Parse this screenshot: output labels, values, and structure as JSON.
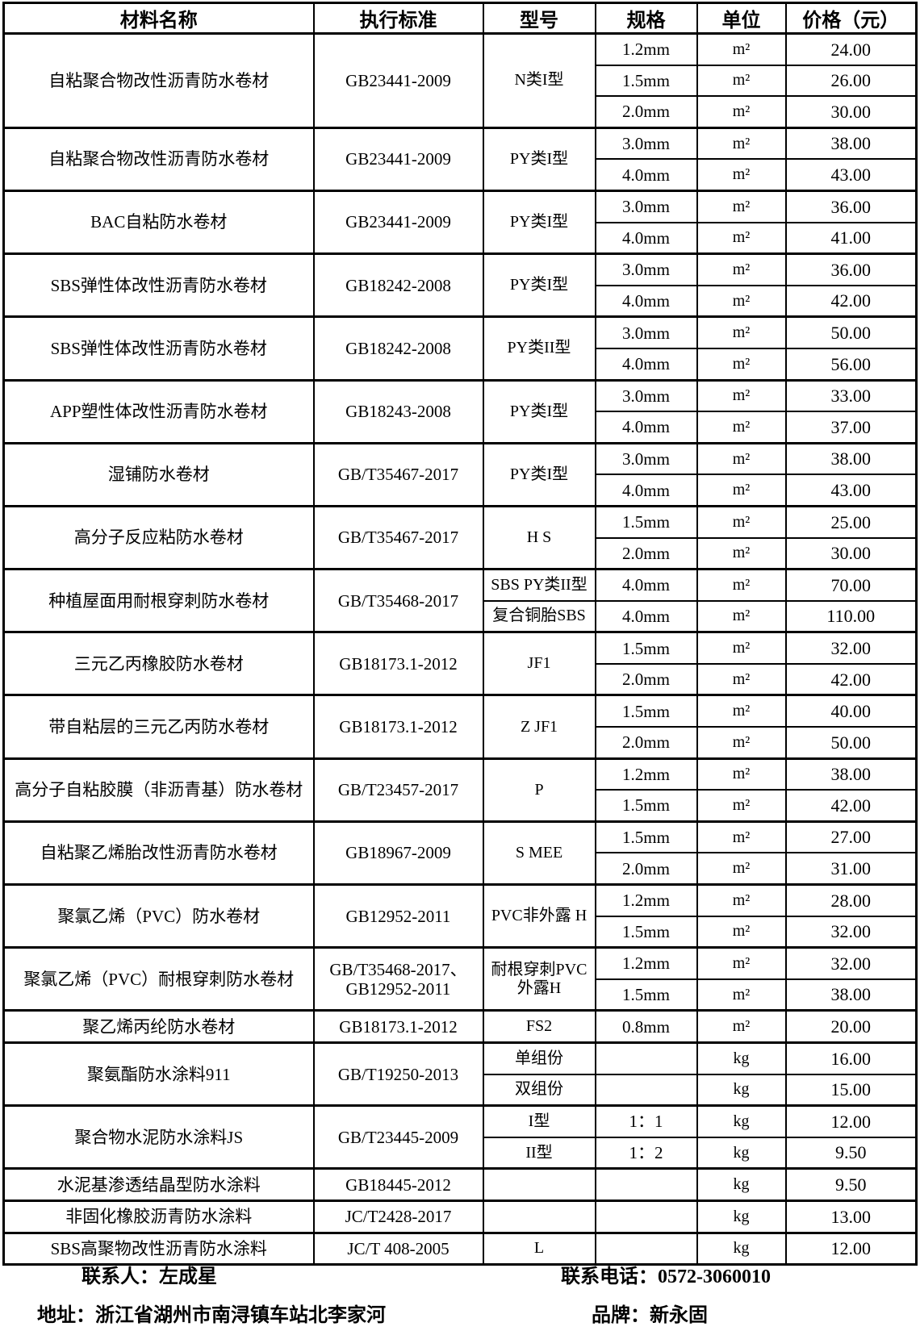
{
  "colors": {
    "background": "#ffffff",
    "text": "#000000",
    "border": "#000000"
  },
  "table": {
    "headers": [
      "材料名称",
      "执行标准",
      "型号",
      "规格",
      "单位",
      "价格（元）"
    ],
    "groups": [
      {
        "name": "自粘聚合物改性沥青防水卷材",
        "standard": "GB23441-2009",
        "model": "N类I型",
        "rows": [
          {
            "spec": "1.2mm",
            "unit": "m²",
            "price": "24.00"
          },
          {
            "spec": "1.5mm",
            "unit": "m²",
            "price": "26.00"
          },
          {
            "spec": "2.0mm",
            "unit": "m²",
            "price": "30.00"
          }
        ]
      },
      {
        "name": "自粘聚合物改性沥青防水卷材",
        "standard": "GB23441-2009",
        "model": "PY类I型",
        "rows": [
          {
            "spec": "3.0mm",
            "unit": "m²",
            "price": "38.00"
          },
          {
            "spec": "4.0mm",
            "unit": "m²",
            "price": "43.00"
          }
        ]
      },
      {
        "name": "BAC自粘防水卷材",
        "standard": "GB23441-2009",
        "model": "PY类I型",
        "rows": [
          {
            "spec": "3.0mm",
            "unit": "m²",
            "price": "36.00"
          },
          {
            "spec": "4.0mm",
            "unit": "m²",
            "price": "41.00"
          }
        ]
      },
      {
        "name": "SBS弹性体改性沥青防水卷材",
        "standard": "GB18242-2008",
        "model": "PY类I型",
        "rows": [
          {
            "spec": "3.0mm",
            "unit": "m²",
            "price": "36.00"
          },
          {
            "spec": "4.0mm",
            "unit": "m²",
            "price": "42.00"
          }
        ]
      },
      {
        "name": "SBS弹性体改性沥青防水卷材",
        "standard": "GB18242-2008",
        "model": "PY类II型",
        "rows": [
          {
            "spec": "3.0mm",
            "unit": "m²",
            "price": "50.00"
          },
          {
            "spec": "4.0mm",
            "unit": "m²",
            "price": "56.00"
          }
        ]
      },
      {
        "name": "APP塑性体改性沥青防水卷材",
        "standard": "GB18243-2008",
        "model": "PY类I型",
        "rows": [
          {
            "spec": "3.0mm",
            "unit": "m²",
            "price": "33.00"
          },
          {
            "spec": "4.0mm",
            "unit": "m²",
            "price": "37.00"
          }
        ]
      },
      {
        "name": "湿铺防水卷材",
        "standard": "GB/T35467-2017",
        "model": "PY类I型",
        "rows": [
          {
            "spec": "3.0mm",
            "unit": "m²",
            "price": "38.00"
          },
          {
            "spec": "4.0mm",
            "unit": "m²",
            "price": "43.00"
          }
        ]
      },
      {
        "name": "高分子反应粘防水卷材",
        "standard": "GB/T35467-2017",
        "model": "H S",
        "rows": [
          {
            "spec": "1.5mm",
            "unit": "m²",
            "price": "25.00"
          },
          {
            "spec": "2.0mm",
            "unit": "m²",
            "price": "30.00"
          }
        ]
      },
      {
        "name": "种植屋面用耐根穿刺防水卷材",
        "standard": "GB/T35468-2017",
        "models": [
          "SBS PY类II型",
          "复合铜胎SBS"
        ],
        "rows": [
          {
            "spec": "4.0mm",
            "unit": "m²",
            "price": "70.00"
          },
          {
            "spec": "4.0mm",
            "unit": "m²",
            "price": "110.00"
          }
        ]
      },
      {
        "name": "三元乙丙橡胶防水卷材",
        "standard": "GB18173.1-2012",
        "model": "JF1",
        "rows": [
          {
            "spec": "1.5mm",
            "unit": "m²",
            "price": "32.00"
          },
          {
            "spec": "2.0mm",
            "unit": "m²",
            "price": "42.00"
          }
        ]
      },
      {
        "name": "带自粘层的三元乙丙防水卷材",
        "standard": "GB18173.1-2012",
        "model": "Z JF1",
        "rows": [
          {
            "spec": "1.5mm",
            "unit": "m²",
            "price": "40.00"
          },
          {
            "spec": "2.0mm",
            "unit": "m²",
            "price": "50.00"
          }
        ]
      },
      {
        "name": "高分子自粘胶膜（非沥青基）防水卷材",
        "standard": "GB/T23457-2017",
        "model": "P",
        "rows": [
          {
            "spec": "1.2mm",
            "unit": "m²",
            "price": "38.00"
          },
          {
            "spec": "1.5mm",
            "unit": "m²",
            "price": "42.00"
          }
        ]
      },
      {
        "name": "自粘聚乙烯胎改性沥青防水卷材",
        "standard": "GB18967-2009",
        "model": "S MEE",
        "rows": [
          {
            "spec": "1.5mm",
            "unit": "m²",
            "price": "27.00"
          },
          {
            "spec": "2.0mm",
            "unit": "m²",
            "price": "31.00"
          }
        ]
      },
      {
        "name": "聚氯乙烯（PVC）防水卷材",
        "standard": "GB12952-2011",
        "model": "PVC非外露 H",
        "rows": [
          {
            "spec": "1.2mm",
            "unit": "m²",
            "price": "28.00"
          },
          {
            "spec": "1.5mm",
            "unit": "m²",
            "price": "32.00"
          }
        ]
      },
      {
        "name": "聚氯乙烯（PVC）耐根穿刺防水卷材",
        "standard": "GB/T35468-2017、\nGB12952-2011",
        "model": "耐根穿刺PVC\n外露H",
        "rows": [
          {
            "spec": "1.2mm",
            "unit": "m²",
            "price": "32.00"
          },
          {
            "spec": "1.5mm",
            "unit": "m²",
            "price": "38.00"
          }
        ]
      },
      {
        "name": "聚乙烯丙纶防水卷材",
        "standard": "GB18173.1-2012",
        "model": "FS2",
        "rows": [
          {
            "spec": "0.8mm",
            "unit": "m²",
            "price": "20.00"
          }
        ]
      },
      {
        "name": "聚氨酯防水涂料911",
        "standard": "GB/T19250-2013",
        "models": [
          "单组份",
          "双组份"
        ],
        "rows": [
          {
            "spec": "",
            "unit": "kg",
            "price": "16.00"
          },
          {
            "spec": "",
            "unit": "kg",
            "price": "15.00"
          }
        ]
      },
      {
        "name": "聚合物水泥防水涂料JS",
        "standard": "GB/T23445-2009",
        "models": [
          "I型",
          "II型"
        ],
        "rows": [
          {
            "spec": "1：1",
            "unit": "kg",
            "price": "12.00"
          },
          {
            "spec": "1：2",
            "unit": "kg",
            "price": "9.50"
          }
        ]
      },
      {
        "name": "水泥基渗透结晶型防水涂料",
        "standard": "GB18445-2012",
        "model": "",
        "rows": [
          {
            "spec": "",
            "unit": "kg",
            "price": "9.50"
          }
        ]
      },
      {
        "name": "非固化橡胶沥青防水涂料",
        "standard": "JC/T2428-2017",
        "model": "",
        "rows": [
          {
            "spec": "",
            "unit": "kg",
            "price": "13.00"
          }
        ]
      },
      {
        "name": "SBS高聚物改性沥青防水涂料",
        "standard": "JC/T 408-2005",
        "model": "L",
        "rows": [
          {
            "spec": "",
            "unit": "kg",
            "price": "12.00"
          }
        ]
      }
    ]
  },
  "footer": {
    "contact_person": "联系人：左成星",
    "contact_phone": "联系电话：0572-3060010",
    "address": "地址：浙江省湖州市南浔镇车站北李家河",
    "brand": "品牌：新永固"
  }
}
